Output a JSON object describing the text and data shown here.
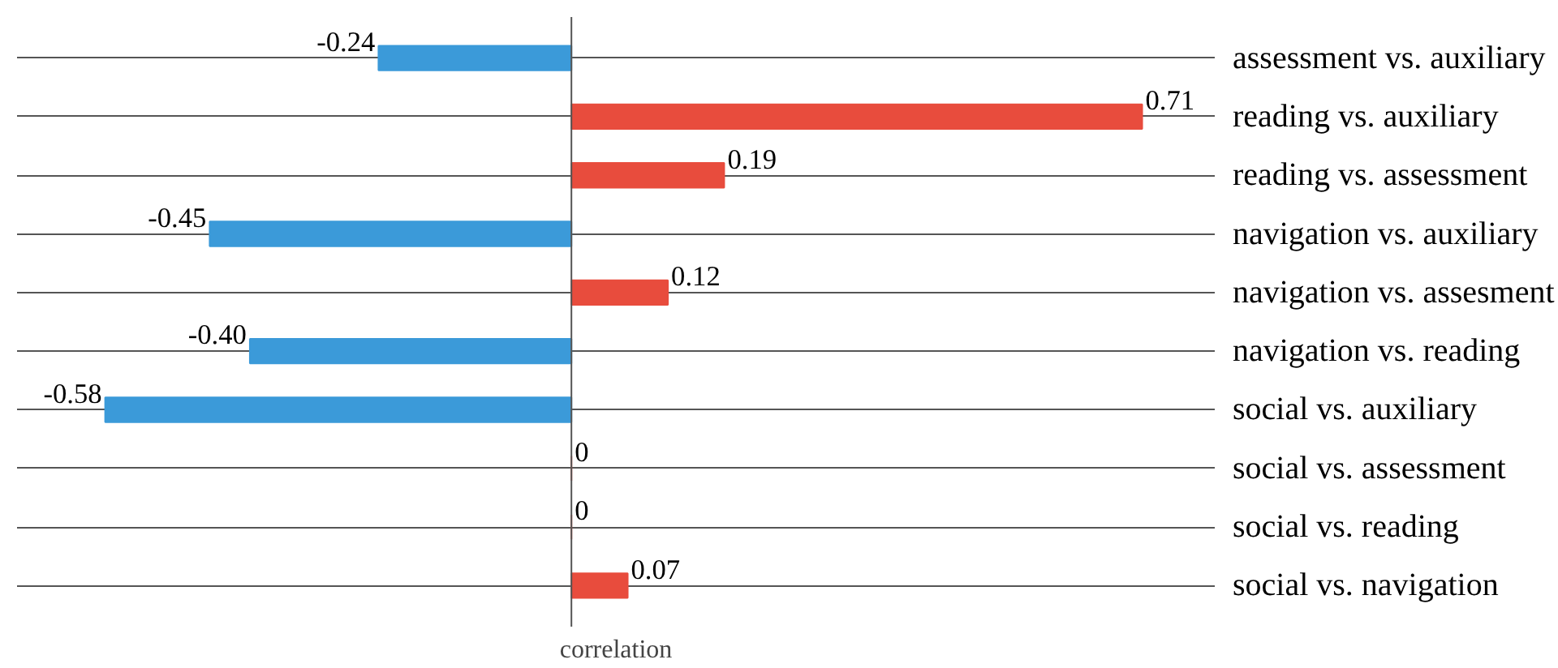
{
  "chart_data": {
    "type": "bar",
    "orientation": "horizontal",
    "xlabel": "correlation",
    "categories": [
      "assessment vs. auxiliary",
      "reading vs. auxiliary",
      "reading vs. assessment",
      "navigation vs. auxiliary",
      "navigation vs. assesment",
      "navigation vs. reading",
      "social vs. auxiliary",
      "social vs. assessment",
      "social vs. reading",
      "social vs. navigation"
    ],
    "values": [
      -0.24,
      0.71,
      0.19,
      -0.45,
      0.12,
      -0.4,
      -0.58,
      0,
      0,
      0.07
    ],
    "value_labels": [
      "-0.24",
      "0.71",
      "0.19",
      "-0.45",
      "0.12",
      "-0.40",
      "-0.58",
      "0",
      "0",
      "0.07"
    ],
    "colors": [
      "#3b9ad9",
      "#e84c3d",
      "#e84c3d",
      "#3b9ad9",
      "#e84c3d",
      "#3b9ad9",
      "#3b9ad9",
      "#e84c3d",
      "#e84c3d",
      "#e84c3d"
    ],
    "ref_lines": [
      {
        "axis": "x",
        "value": 0
      }
    ],
    "grid": "y",
    "tick_labels": "y"
  }
}
